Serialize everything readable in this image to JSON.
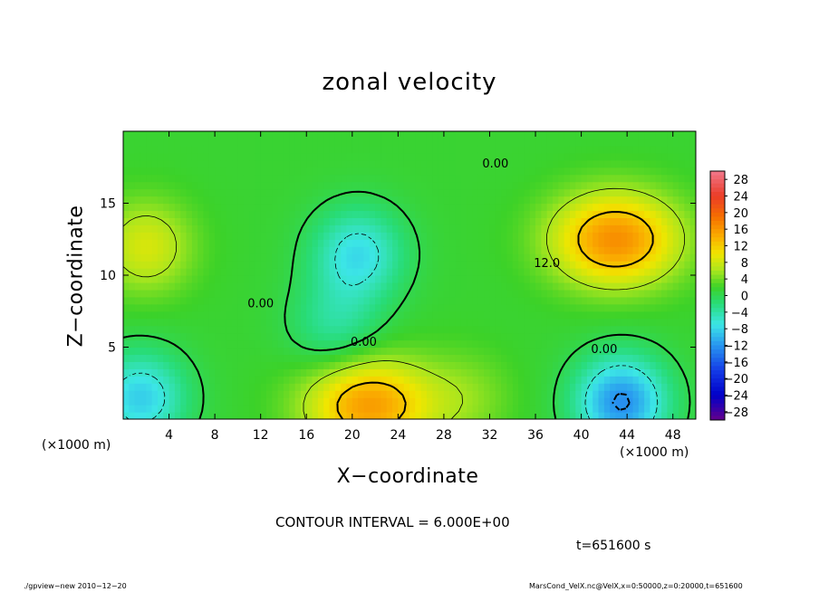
{
  "chart_data": {
    "type": "heatmap",
    "title": "zonal velocity",
    "xlabel": "X−coordinate",
    "ylabel": "Z−coordinate",
    "x_unit_left": "(×1000 m)",
    "x_unit_right": "(×1000 m)",
    "xlim": [
      0,
      50
    ],
    "ylim": [
      0,
      20
    ],
    "xticks": [
      4,
      8,
      12,
      16,
      20,
      24,
      28,
      32,
      36,
      40,
      44,
      48
    ],
    "yticks": [
      5,
      10,
      15
    ],
    "colorbar": {
      "ticks": [
        28,
        24,
        20,
        16,
        12,
        8,
        4,
        0,
        -4,
        -8,
        -12,
        -16,
        -20,
        -24,
        -28
      ],
      "tick_labels": [
        "28",
        "24",
        "20",
        "16",
        "12",
        "8",
        "4",
        "0",
        "−4",
        "−8",
        "−12",
        "−16",
        "−20",
        "−24",
        "−28"
      ],
      "range": [
        -30,
        30
      ]
    },
    "field_features": [
      {
        "kind": "max",
        "x": 43,
        "z": 12.5,
        "value": 15
      },
      {
        "kind": "max",
        "x": 21.5,
        "z": 1.0,
        "value": 14
      },
      {
        "kind": "min",
        "x": 20.5,
        "z": 11.5,
        "value": -9
      },
      {
        "kind": "min",
        "x": 43.5,
        "z": 1.2,
        "value": -14
      },
      {
        "kind": "min",
        "x": 18.5,
        "z": 6.5,
        "value": -5
      },
      {
        "kind": "min",
        "x": 1.5,
        "z": 1.5,
        "value": -10
      },
      {
        "kind": "max",
        "x": 2,
        "z": 12,
        "value": 7
      },
      {
        "kind": "max",
        "x": 30,
        "z": 1.5,
        "value": 3
      }
    ],
    "contour_labels": [
      {
        "text": "0.00",
        "x": 12,
        "z": 8
      },
      {
        "text": "0.00",
        "x": 21,
        "z": 5.3
      },
      {
        "text": "0.00",
        "x": 32.5,
        "z": 17.7
      },
      {
        "text": "0.00",
        "x": 42,
        "z": 4.8
      },
      {
        "text": "12.0",
        "x": 37,
        "z": 10.8
      }
    ],
    "contour_interval": "CONTOUR INTERVAL = 6.000E+00",
    "time": "t=651600 s"
  },
  "footer": {
    "left": "./gpview−new  2010−12−20",
    "right": "MarsCond_VelX.nc@VelX,x=0:50000,z=0:20000,t=651600"
  }
}
